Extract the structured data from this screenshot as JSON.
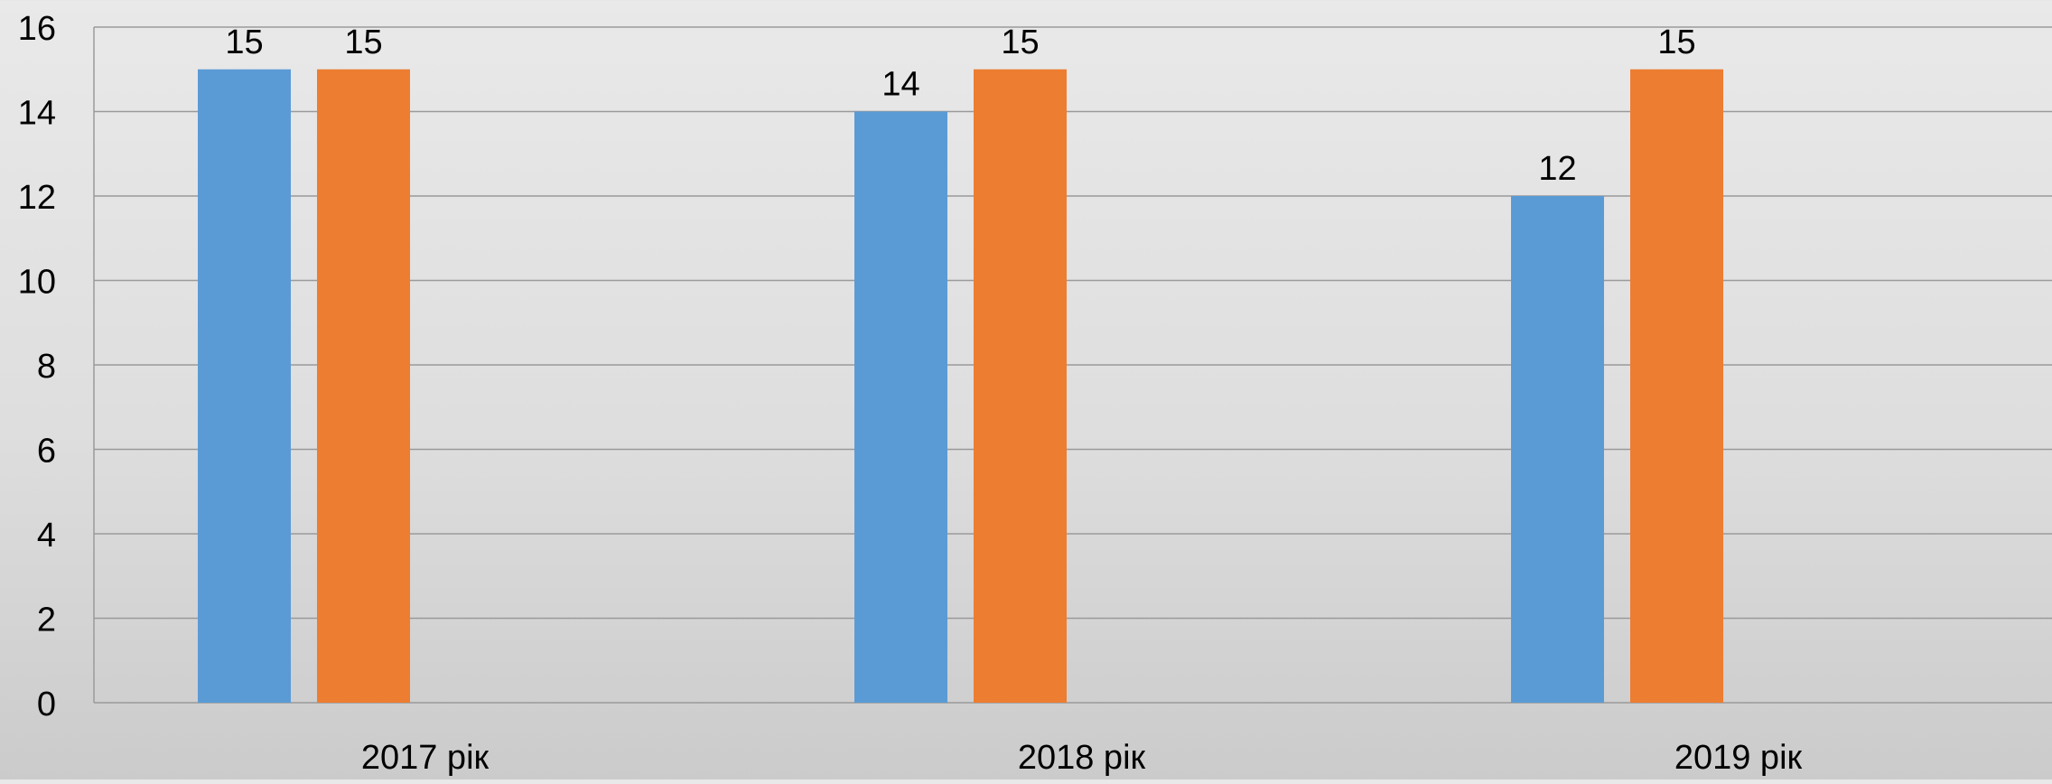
{
  "chart_data": {
    "type": "bar",
    "categories": [
      "2017 рік",
      "2018 рік",
      "2019 рік"
    ],
    "series": [
      {
        "values": [
          15,
          14,
          12
        ],
        "color": "#5b9bd5"
      },
      {
        "values": [
          15,
          15,
          15
        ],
        "color": "#ed7d31"
      }
    ],
    "ylim": [
      0,
      16
    ],
    "yticks": [
      0,
      2,
      4,
      6,
      8,
      10,
      12,
      14,
      16
    ],
    "grid": true,
    "data_labels": true,
    "title": "",
    "xlabel": "",
    "ylabel": ""
  }
}
